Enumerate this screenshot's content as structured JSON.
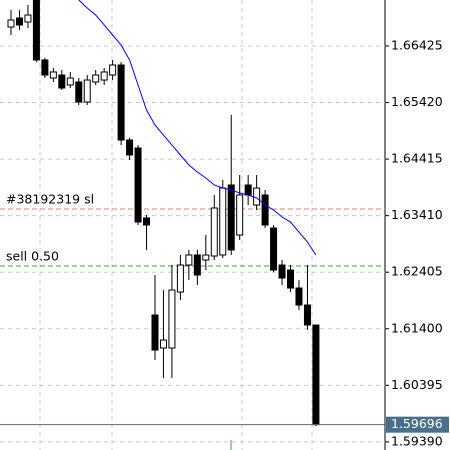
{
  "chart_data": {
    "type": "candlestick",
    "open": [
      1.66762,
      1.66922,
      1.66851,
      1.67242,
      1.66176,
      1.65856,
      1.65909,
      1.65732,
      1.65785,
      1.65429,
      1.65785,
      1.6582,
      1.65909,
      1.66087,
      1.64754,
      1.64612,
      1.63369,
      1.61644,
      1.61058,
      1.61058,
      1.62053,
      1.62533,
      1.62711,
      1.62622,
      1.62693,
      1.62711,
      1.63955,
      1.63066,
      1.63955,
      1.63599,
      1.63777,
      1.6319,
      1.62533,
      1.62444,
      1.62124,
      1.61822,
      1.61467
    ],
    "high": [
      1.67064,
      1.67064,
      1.67153,
      1.673,
      1.66211,
      1.66034,
      1.65998,
      1.65963,
      1.65856,
      1.65909,
      1.65998,
      1.66034,
      1.66176,
      1.6614,
      1.6479,
      1.64665,
      1.63422,
      1.62355,
      1.62089,
      1.62533,
      1.62711,
      1.628,
      1.628,
      1.63066,
      1.63777,
      1.64043,
      1.65198,
      1.64132,
      1.64132,
      1.64132,
      1.63866,
      1.63244,
      1.62622,
      1.62533,
      1.62266,
      1.62533,
      1.61467
    ],
    "low": [
      1.6662,
      1.66709,
      1.66744,
      1.6614,
      1.65856,
      1.65785,
      1.65643,
      1.65678,
      1.65376,
      1.65376,
      1.65732,
      1.65732,
      1.6582,
      1.64665,
      1.64399,
      1.63244,
      1.628,
      1.60845,
      1.60525,
      1.60525,
      1.61911,
      1.62266,
      1.62178,
      1.62444,
      1.62622,
      1.62658,
      1.62711,
      1.62977,
      1.63599,
      1.6351,
      1.6319,
      1.62408,
      1.62178,
      1.62053,
      1.61733,
      1.61378,
      1.59672
    ],
    "close": [
      1.66887,
      1.66798,
      1.66975,
      1.66176,
      1.65909,
      1.65963,
      1.65678,
      1.65856,
      1.65429,
      1.6582,
      1.65909,
      1.65963,
      1.66087,
      1.64754,
      1.64488,
      1.63297,
      1.63244,
      1.61022,
      1.612,
      1.62089,
      1.62533,
      1.62711,
      1.62355,
      1.62711,
      1.63546,
      1.63901,
      1.628,
      1.63777,
      1.63777,
      1.63901,
      1.63244,
      1.62444,
      1.62302,
      1.62124,
      1.61822,
      1.61467,
      1.59696
    ],
    "moving_average": {
      "color": "#0000ff",
      "values": [
        null,
        null,
        null,
        null,
        null,
        null,
        null,
        null,
        1.67242,
        1.671,
        1.66975,
        1.66798,
        1.6662,
        1.66442,
        1.66176,
        1.65732,
        1.65287,
        1.65021,
        1.64843,
        1.64665,
        1.64488,
        1.6431,
        1.64186,
        1.64079,
        1.63955,
        1.63901,
        1.63866,
        1.63813,
        1.63777,
        1.63724,
        1.63599,
        1.6351,
        1.63386,
        1.63297,
        1.63119,
        1.62942,
        1.62711
      ]
    },
    "ylim": [
      1.59246,
      1.67242
    ],
    "yticks": [
      1.66425,
      {
        "value": 1.6542,
        "label": "1.65420"
      },
      1.64415,
      {
        "value": 1.6341,
        "label": "1.63410"
      },
      1.62405,
      {
        "value": 1.614,
        "label": "1.61400"
      },
      1.60395,
      {
        "value": 1.5939,
        "label": "1.59390"
      }
    ],
    "grid": true,
    "annotations": [
      {
        "label": "#38192319 sl",
        "value": 1.63528,
        "color": "#e8806a"
      },
      {
        "label": "sell 0.50",
        "value": 1.62515,
        "color": "#33aa33"
      }
    ],
    "last_price": 1.59696,
    "last_price_color": "#4a6f8a"
  }
}
